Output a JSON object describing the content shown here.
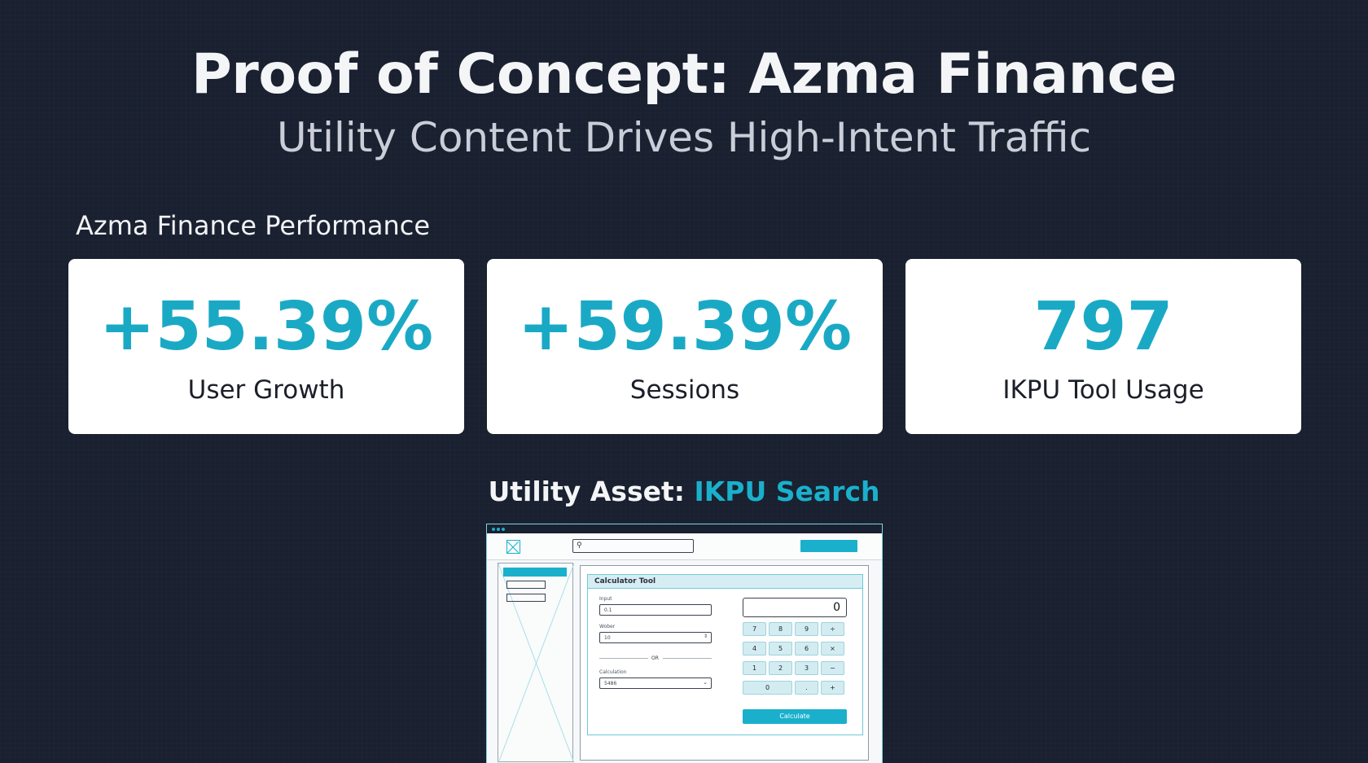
{
  "header": {
    "title": "Proof of Concept: Azma Finance",
    "subtitle": "Utility Content Drives High-Intent Traffic"
  },
  "performance": {
    "section_label": "Azma Finance Performance",
    "cards": [
      {
        "value": "+55.39%",
        "label": "User Growth"
      },
      {
        "value": "+59.39%",
        "label": "Sessions"
      },
      {
        "value": "797",
        "label": "IKPU Tool Usage"
      }
    ]
  },
  "asset": {
    "heading_prefix": "Utility Asset: ",
    "heading_accent": "IKPU Search"
  },
  "mockup": {
    "panel_title": "Calculator Tool",
    "input_label": "Input",
    "input_value": "0.1",
    "number_label": "Wober",
    "number_value": "10",
    "or_text": "OR",
    "calc_label": "Calculation",
    "calc_value": "5486",
    "display_value": "0",
    "keys": [
      "7",
      "8",
      "9",
      "÷",
      "4",
      "5",
      "6",
      "×",
      "1",
      "2",
      "3",
      "−",
      "0",
      ".",
      "+"
    ],
    "calculate_button": "Calculate"
  },
  "colors": {
    "background": "#19202f",
    "accent": "#1ab0cc",
    "card": "#ffffff"
  }
}
